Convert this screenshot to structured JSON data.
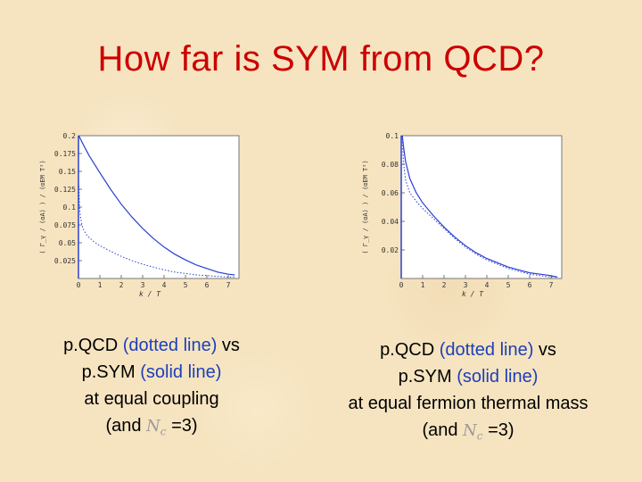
{
  "slide": {
    "title": "How far is SYM from QCD?"
  },
  "plots": [
    {
      "ylabel": "( Γ_γ / (αA) ) / (αEM T²)",
      "xlabel": "k / T",
      "x_ticks": [
        "0",
        "1",
        "2",
        "3",
        "4",
        "5",
        "6",
        "7"
      ],
      "y_ticks": [
        "0.2",
        "0.175",
        "0.15",
        "0.125",
        "0.1",
        "0.075",
        "0.05",
        "0.025"
      ]
    },
    {
      "ylabel": "( Γ_γ / (αA) ) / (αEM T²)",
      "xlabel": "k / T",
      "x_ticks": [
        "0",
        "1",
        "2",
        "3",
        "4",
        "5",
        "6",
        "7"
      ],
      "y_ticks": [
        "0.1",
        "0.08",
        "0.06",
        "0.04",
        "0.02"
      ]
    }
  ],
  "captions": {
    "left": {
      "l1_a": "p.QCD",
      "l1_b": " (dotted line) ",
      "l1_c": "vs",
      "l2_a": "p.SYM",
      "l2_b": " (solid line)",
      "l3": "at equal coupling",
      "l4_a": "(and ",
      "l4_nc": "N",
      "l4_sub": "c",
      "l4_b": " =3)"
    },
    "right": {
      "l1_a": "p.QCD",
      "l1_b": " (dotted line) ",
      "l1_c": "vs",
      "l2_a": "p.SYM",
      "l2_b": " (solid line)",
      "l3": "at equal fermion thermal mass",
      "l4_a": "(and ",
      "l4_nc": "N",
      "l4_sub": "c",
      "l4_b": " =3)"
    }
  },
  "chart_data": [
    {
      "type": "line",
      "title": "",
      "xlabel": "k / T",
      "ylabel": "( Γ_γ / (αA) ) / (αEM T²)",
      "xlim": [
        0,
        7.5
      ],
      "ylim": [
        0,
        0.2
      ],
      "series": [
        {
          "name": "p.SYM (solid line)",
          "style": "solid",
          "x": [
            0.02,
            0.1,
            0.25,
            0.5,
            1,
            1.5,
            2,
            2.5,
            3,
            3.5,
            4,
            4.5,
            5,
            5.5,
            6,
            6.5,
            7,
            7.3
          ],
          "y": [
            0.2,
            0.195,
            0.186,
            0.172,
            0.148,
            0.125,
            0.104,
            0.086,
            0.07,
            0.056,
            0.044,
            0.034,
            0.026,
            0.019,
            0.014,
            0.009,
            0.006,
            0.005
          ]
        },
        {
          "name": "p.QCD (dotted line)",
          "style": "dotted",
          "x": [
            0.02,
            0.05,
            0.1,
            0.2,
            0.4,
            0.7,
            1,
            1.5,
            2,
            2.5,
            3,
            3.5,
            4,
            4.5,
            5,
            5.5,
            6,
            6.5,
            7,
            7.3
          ],
          "y": [
            0.13,
            0.1,
            0.085,
            0.07,
            0.06,
            0.052,
            0.046,
            0.038,
            0.031,
            0.025,
            0.02,
            0.016,
            0.012,
            0.009,
            0.007,
            0.005,
            0.004,
            0.003,
            0.002,
            0.002
          ]
        }
      ]
    },
    {
      "type": "line",
      "title": "",
      "xlabel": "k / T",
      "ylabel": "( Γ_γ / (αA) ) / (αEM T²)",
      "xlim": [
        0,
        7.5
      ],
      "ylim": [
        0,
        0.1
      ],
      "series": [
        {
          "name": "p.SYM (solid line)",
          "style": "solid",
          "x": [
            0.05,
            0.1,
            0.2,
            0.4,
            0.7,
            1,
            1.5,
            2,
            2.5,
            3,
            3.5,
            4,
            4.5,
            5,
            5.5,
            6,
            6.5,
            7,
            7.3
          ],
          "y": [
            0.1,
            0.093,
            0.082,
            0.07,
            0.06,
            0.053,
            0.044,
            0.036,
            0.029,
            0.023,
            0.018,
            0.014,
            0.011,
            0.008,
            0.006,
            0.004,
            0.003,
            0.002,
            0.001
          ]
        },
        {
          "name": "p.QCD (dotted line)",
          "style": "dotted",
          "x": [
            0.05,
            0.1,
            0.2,
            0.4,
            0.7,
            1,
            1.5,
            2,
            2.5,
            3,
            3.5,
            4,
            4.5,
            5,
            5.5,
            6,
            6.5,
            7,
            7.3
          ],
          "y": [
            0.1,
            0.082,
            0.069,
            0.06,
            0.054,
            0.049,
            0.042,
            0.035,
            0.028,
            0.022,
            0.017,
            0.013,
            0.01,
            0.007,
            0.005,
            0.003,
            0.002,
            0.001,
            0.001
          ]
        }
      ]
    }
  ]
}
